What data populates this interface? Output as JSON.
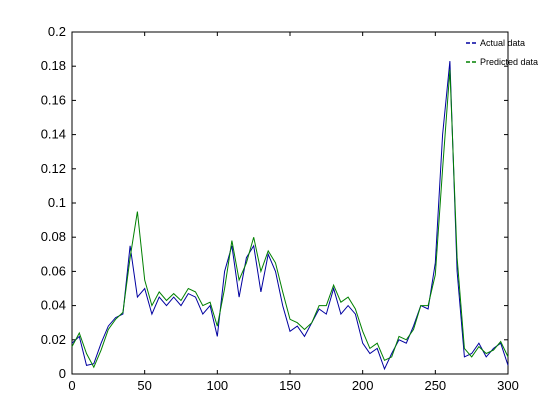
{
  "chart_data": {
    "type": "line",
    "x": [
      0,
      5,
      10,
      15,
      20,
      25,
      30,
      35,
      40,
      45,
      50,
      55,
      60,
      65,
      70,
      75,
      80,
      85,
      90,
      95,
      100,
      105,
      110,
      115,
      120,
      125,
      130,
      135,
      140,
      145,
      150,
      155,
      160,
      165,
      170,
      175,
      180,
      185,
      190,
      195,
      200,
      205,
      210,
      215,
      220,
      225,
      230,
      235,
      240,
      245,
      250,
      255,
      260,
      265,
      270,
      275,
      280,
      285,
      290,
      295,
      300
    ],
    "series": [
      {
        "name": "Actual data",
        "color": "#0000a0",
        "values": [
          0.018,
          0.022,
          0.005,
          0.006,
          0.018,
          0.028,
          0.033,
          0.035,
          0.075,
          0.045,
          0.05,
          0.035,
          0.045,
          0.04,
          0.045,
          0.04,
          0.047,
          0.045,
          0.035,
          0.04,
          0.022,
          0.06,
          0.075,
          0.045,
          0.068,
          0.075,
          0.048,
          0.07,
          0.06,
          0.04,
          0.025,
          0.028,
          0.022,
          0.03,
          0.038,
          0.035,
          0.05,
          0.035,
          0.04,
          0.035,
          0.018,
          0.012,
          0.015,
          0.003,
          0.012,
          0.02,
          0.018,
          0.028,
          0.04,
          0.038,
          0.065,
          0.14,
          0.183,
          0.06,
          0.01,
          0.012,
          0.018,
          0.01,
          0.015,
          0.018,
          0.005
        ]
      },
      {
        "name": "Predicted data",
        "color": "#008000",
        "values": [
          0.016,
          0.024,
          0.012,
          0.004,
          0.014,
          0.026,
          0.032,
          0.036,
          0.068,
          0.095,
          0.055,
          0.04,
          0.048,
          0.043,
          0.047,
          0.043,
          0.05,
          0.048,
          0.04,
          0.042,
          0.028,
          0.05,
          0.078,
          0.055,
          0.065,
          0.08,
          0.06,
          0.072,
          0.065,
          0.048,
          0.032,
          0.03,
          0.026,
          0.03,
          0.04,
          0.04,
          0.052,
          0.042,
          0.045,
          0.038,
          0.025,
          0.015,
          0.018,
          0.008,
          0.01,
          0.022,
          0.02,
          0.026,
          0.04,
          0.04,
          0.058,
          0.12,
          0.178,
          0.068,
          0.015,
          0.01,
          0.016,
          0.012,
          0.014,
          0.019,
          0.01
        ]
      }
    ],
    "xlim": [
      0,
      300
    ],
    "xticks": [
      0,
      50,
      100,
      150,
      200,
      250,
      300
    ],
    "ylim": [
      0,
      0.2
    ],
    "yticks": [
      0,
      0.02,
      0.04,
      0.06,
      0.08,
      0.1,
      0.12,
      0.14,
      0.16,
      0.18,
      0.2
    ],
    "legend": "upper right"
  }
}
